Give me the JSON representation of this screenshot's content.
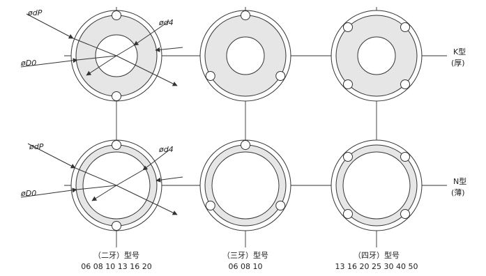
{
  "dimension_labels": {
    "dP": "ødP",
    "D0": "øD0",
    "d4": "ød4"
  },
  "row_labels": {
    "k_type": "K型",
    "k_type_note": "(厚)",
    "n_type": "N型",
    "n_type_note": "(薄)"
  },
  "columns": [
    {
      "title": "（二牙）型号",
      "sizes": "06 08 10 13 16 20"
    },
    {
      "title": "（三牙）型号",
      "sizes": "06 08 10"
    },
    {
      "title": "（四牙）型号",
      "sizes": "13 16 20 25 30 40 50"
    }
  ],
  "colors": {
    "line": "#333333",
    "fill": "#e6e6e6",
    "background": "#ffffff"
  }
}
